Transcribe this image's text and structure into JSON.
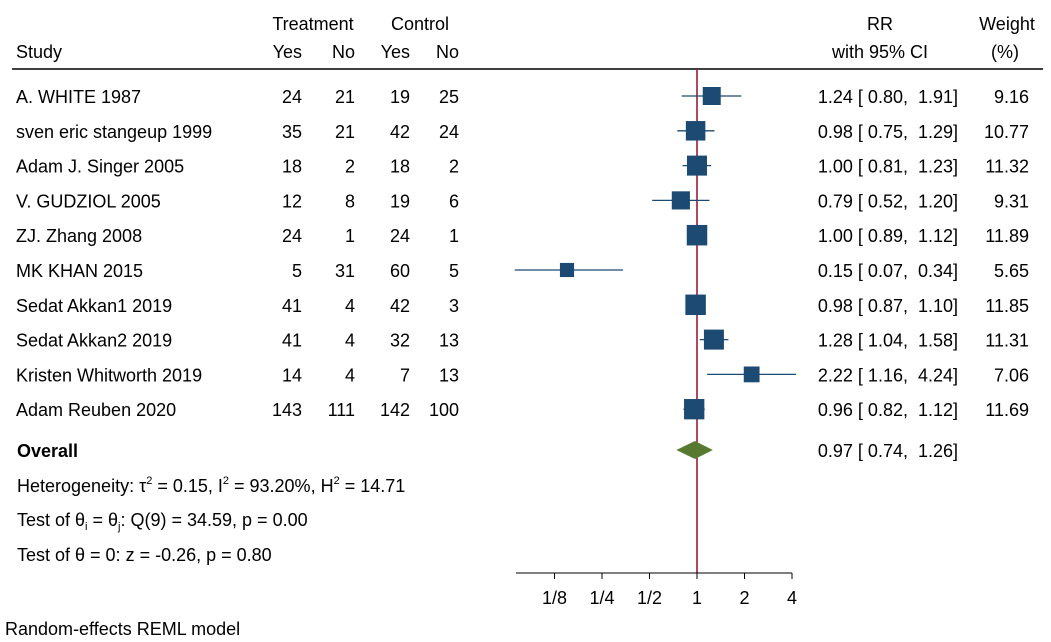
{
  "chart_data": {
    "type": "forest",
    "x_scale": "log2",
    "reference_line": 1,
    "xticks": [
      0.125,
      0.25,
      0.5,
      1,
      2,
      4
    ],
    "xtick_labels": [
      "1/8",
      "1/4",
      "1/2",
      "1",
      "2",
      "4"
    ],
    "xlim": [
      0.0625,
      4.5
    ],
    "columns": {
      "study": "Study",
      "treatment_group": "Treatment",
      "control_group": "Control",
      "yes": "Yes",
      "no": "No",
      "rr_line1": "RR",
      "rr_line2": "with 95% CI",
      "weight_line1": "Weight",
      "weight_line2": "(%)"
    },
    "studies": [
      {
        "name": "A. WHITE 1987",
        "t_yes": 24,
        "t_no": 21,
        "c_yes": 19,
        "c_no": 25,
        "rr": 1.24,
        "lo": 0.8,
        "hi": 1.91,
        "rr_text": "1.24 [ 0.80,  1.91]",
        "weight": 9.16,
        "weight_text": "9.16"
      },
      {
        "name": "sven eric stangeup 1999",
        "t_yes": 35,
        "t_no": 21,
        "c_yes": 42,
        "c_no": 24,
        "rr": 0.98,
        "lo": 0.75,
        "hi": 1.29,
        "rr_text": "0.98 [ 0.75,  1.29]",
        "weight": 10.77,
        "weight_text": "10.77"
      },
      {
        "name": "Adam J. Singer 2005",
        "t_yes": 18,
        "t_no": 2,
        "c_yes": 18,
        "c_no": 2,
        "rr": 1.0,
        "lo": 0.81,
        "hi": 1.23,
        "rr_text": "1.00 [ 0.81,  1.23]",
        "weight": 11.32,
        "weight_text": "11.32"
      },
      {
        "name": "V. GUDZIOL 2005",
        "t_yes": 12,
        "t_no": 8,
        "c_yes": 19,
        "c_no": 6,
        "rr": 0.79,
        "lo": 0.52,
        "hi": 1.2,
        "rr_text": "0.79 [ 0.52,  1.20]",
        "weight": 9.31,
        "weight_text": "9.31"
      },
      {
        "name": "ZJ. Zhang 2008",
        "t_yes": 24,
        "t_no": 1,
        "c_yes": 24,
        "c_no": 1,
        "rr": 1.0,
        "lo": 0.89,
        "hi": 1.12,
        "rr_text": "1.00 [ 0.89,  1.12]",
        "weight": 11.89,
        "weight_text": "11.89"
      },
      {
        "name": "MK KHAN 2015",
        "t_yes": 5,
        "t_no": 31,
        "c_yes": 60,
        "c_no": 5,
        "rr": 0.15,
        "lo": 0.07,
        "hi": 0.34,
        "rr_text": "0.15 [ 0.07,  0.34]",
        "weight": 5.65,
        "weight_text": "5.65"
      },
      {
        "name": "Sedat Akkan1 2019",
        "t_yes": 41,
        "t_no": 4,
        "c_yes": 42,
        "c_no": 3,
        "rr": 0.98,
        "lo": 0.87,
        "hi": 1.1,
        "rr_text": "0.98 [ 0.87,  1.10]",
        "weight": 11.85,
        "weight_text": "11.85"
      },
      {
        "name": "Sedat Akkan2 2019",
        "t_yes": 41,
        "t_no": 4,
        "c_yes": 32,
        "c_no": 13,
        "rr": 1.28,
        "lo": 1.04,
        "hi": 1.58,
        "rr_text": "1.28 [ 1.04,  1.58]",
        "weight": 11.31,
        "weight_text": "11.31"
      },
      {
        "name": "Kristen Whitworth 2019",
        "t_yes": 14,
        "t_no": 4,
        "c_yes": 7,
        "c_no": 13,
        "rr": 2.22,
        "lo": 1.16,
        "hi": 4.24,
        "rr_text": "2.22 [ 1.16,  4.24]",
        "weight": 7.06,
        "weight_text": "7.06"
      },
      {
        "name": "Adam Reuben 2020",
        "t_yes": 143,
        "t_no": 111,
        "c_yes": 142,
        "c_no": 100,
        "rr": 0.96,
        "lo": 0.82,
        "hi": 1.12,
        "rr_text": "0.96 [ 0.82,  1.12]",
        "weight": 11.69,
        "weight_text": "11.69"
      }
    ],
    "overall": {
      "label": "Overall",
      "rr": 0.97,
      "lo": 0.74,
      "hi": 1.26,
      "rr_text": "0.97 [ 0.74,  1.26]"
    },
    "stats": {
      "heterogeneity": {
        "prefix": "Heterogeneity: τ",
        "tau_sup": "2",
        "tau_val": " = 0.15, I",
        "i_sup": "2",
        "i_val": " = 93.20%, H",
        "h_sup": "2",
        "h_val": " = 14.71"
      },
      "test_homog": {
        "prefix": "Test of θ",
        "sub_i": "i",
        "eq": " = θ",
        "sub_j": "j",
        "rest": ": Q(9) = 34.59, p = 0.00"
      },
      "test_zero": "Test of θ = 0: z = -0.26, p = 0.80"
    },
    "footnote": "Random-effects REML model",
    "colors": {
      "marker": "#1c4a72",
      "ci_line": "#1c4a72",
      "diamond": "#587a30",
      "reference": "#9b1b3a",
      "rule": "#000000"
    }
  }
}
